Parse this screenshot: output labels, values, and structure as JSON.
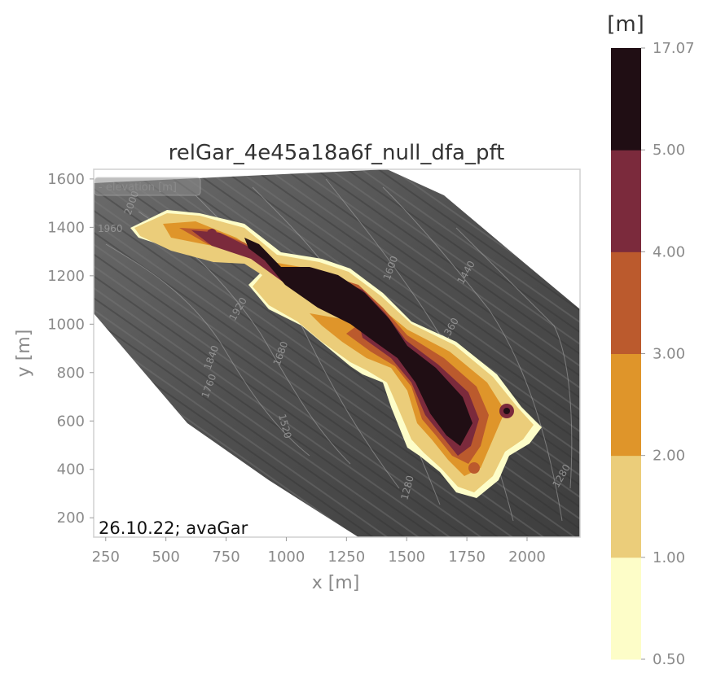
{
  "chart_data": {
    "type": "heatmap",
    "title": "relGar_4e45a18a6f_null_dfa_pft",
    "xlabel": "x [m]",
    "ylabel": "y [m]",
    "xlim": [
      200,
      2220
    ],
    "ylim": [
      120,
      1640
    ],
    "x_ticks": [
      "250",
      "500",
      "750",
      "1000",
      "1250",
      "1500",
      "1750",
      "2000"
    ],
    "y_ticks": [
      "200",
      "400",
      "600",
      "800",
      "1000",
      "1200",
      "1400",
      "1600"
    ],
    "annotation": "26.10.22; avaGar",
    "hillshade_legend": "- elevation [m]",
    "contour_labels": [
      "1960",
      "2000",
      "1840",
      "1920",
      "1680",
      "1760",
      "1600",
      "1520",
      "1440",
      "1360",
      "1280",
      "1280"
    ],
    "colorbar": {
      "unit": "[m]",
      "boundaries": [
        "0.50",
        "1.00",
        "2.00",
        "3.00",
        "4.00",
        "5.00",
        "17.07"
      ],
      "colors": [
        "#fdfdc8",
        "#ebcd7a",
        "#df952a",
        "#bb5a2d",
        "#7b2a3c",
        "#200e14"
      ]
    }
  }
}
